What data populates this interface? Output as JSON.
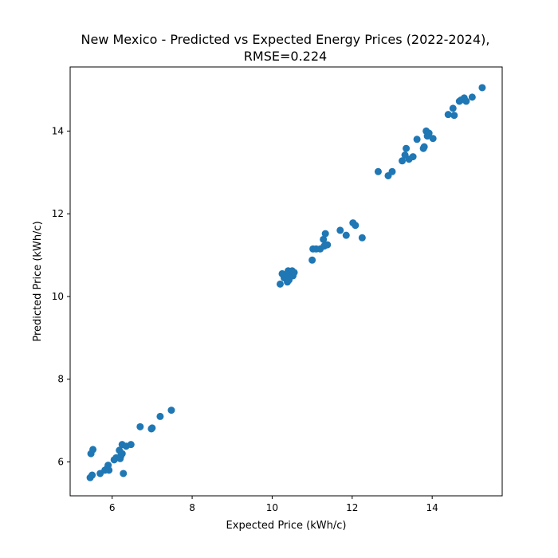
{
  "chart_data": {
    "type": "scatter",
    "title_lines": [
      "New Mexico - Predicted vs Expected Energy Prices (2022-2024),",
      "RMSE=0.224"
    ],
    "xlabel": "Expected Price (kWh/c)",
    "ylabel": "Predicted Price (kWh/c)",
    "xlim": [
      4.95,
      15.75
    ],
    "ylim": [
      5.18,
      15.55
    ],
    "xticks": [
      "6",
      "8",
      "10",
      "12",
      "14"
    ],
    "yticks": [
      "6",
      "8",
      "10",
      "12",
      "14"
    ],
    "marker_color": "#1f77b4",
    "grid": false,
    "x": [
      5.45,
      5.47,
      5.5,
      5.52,
      5.7,
      5.82,
      5.88,
      5.9,
      5.92,
      6.05,
      6.1,
      6.18,
      6.2,
      6.22,
      6.25,
      6.25,
      6.28,
      6.35,
      6.47,
      6.7,
      6.98,
      7.0,
      7.2,
      7.48,
      10.2,
      10.25,
      10.3,
      10.35,
      10.38,
      10.4,
      10.42,
      10.45,
      10.48,
      10.5,
      10.52,
      10.55,
      11.0,
      11.02,
      11.1,
      11.2,
      11.28,
      11.3,
      11.33,
      11.38,
      11.7,
      11.85,
      12.02,
      12.08,
      12.25,
      12.65,
      12.9,
      13.0,
      13.25,
      13.32,
      13.35,
      13.42,
      13.52,
      13.62,
      13.78,
      13.8,
      13.85,
      13.88,
      13.92,
      14.02,
      14.4,
      14.52,
      14.55,
      14.68,
      14.72,
      14.8,
      14.85,
      15.0,
      15.25
    ],
    "y": [
      5.62,
      6.2,
      5.68,
      6.3,
      5.72,
      5.8,
      5.85,
      5.92,
      5.8,
      6.05,
      6.1,
      6.28,
      6.08,
      6.15,
      6.42,
      6.2,
      5.72,
      6.38,
      6.42,
      6.85,
      6.8,
      6.82,
      7.1,
      7.25,
      10.3,
      10.55,
      10.45,
      10.5,
      10.35,
      10.62,
      10.4,
      10.55,
      10.6,
      10.62,
      10.5,
      10.58,
      10.88,
      11.15,
      11.15,
      11.15,
      11.38,
      11.22,
      11.52,
      11.25,
      11.6,
      11.48,
      11.78,
      11.72,
      11.42,
      13.02,
      12.92,
      13.02,
      13.28,
      13.42,
      13.58,
      13.32,
      13.38,
      13.8,
      13.58,
      13.62,
      14.0,
      13.88,
      13.95,
      13.82,
      14.4,
      14.55,
      14.38,
      14.72,
      14.75,
      14.8,
      14.72,
      14.82,
      15.05
    ]
  }
}
